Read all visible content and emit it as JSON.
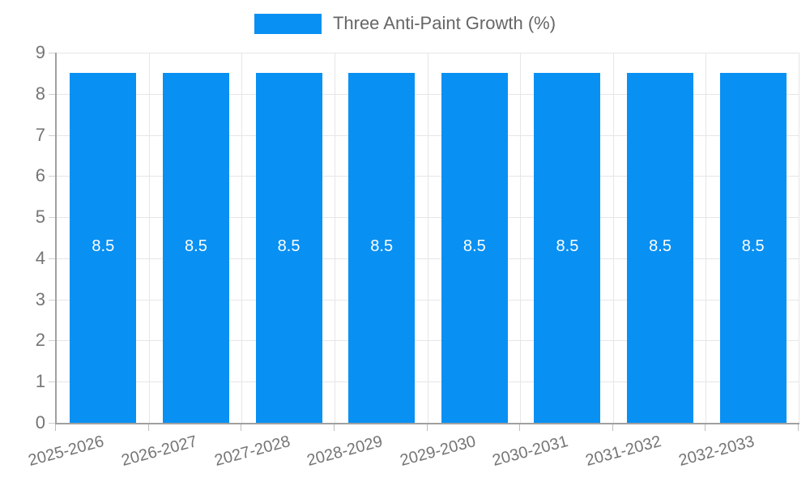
{
  "chart_data": {
    "type": "bar",
    "legend": "Three Anti-Paint Growth (%)",
    "categories": [
      "2025-2026",
      "2026-2027",
      "2027-2028",
      "2028-2029",
      "2029-2030",
      "2030-2031",
      "2031-2032",
      "2032-2033"
    ],
    "values": [
      8.5,
      8.5,
      8.5,
      8.5,
      8.5,
      8.5,
      8.5,
      8.5
    ],
    "value_labels": [
      "8.5",
      "8.5",
      "8.5",
      "8.5",
      "8.5",
      "8.5",
      "8.5",
      "8.5"
    ],
    "ylim": [
      0,
      9
    ],
    "yticks": [
      0,
      1,
      2,
      3,
      4,
      5,
      6,
      7,
      8,
      9
    ],
    "grid": "on",
    "legend_position": "top-center",
    "bar_color": "#0990f3",
    "bar_label_color": "#ffffff",
    "axis_label_color": "#757575",
    "legend_text_color": "#666666",
    "grid_color": "#e6e6e6",
    "axis_line_color": "#a0a0a0",
    "title": "",
    "xlabel": "",
    "ylabel": ""
  }
}
